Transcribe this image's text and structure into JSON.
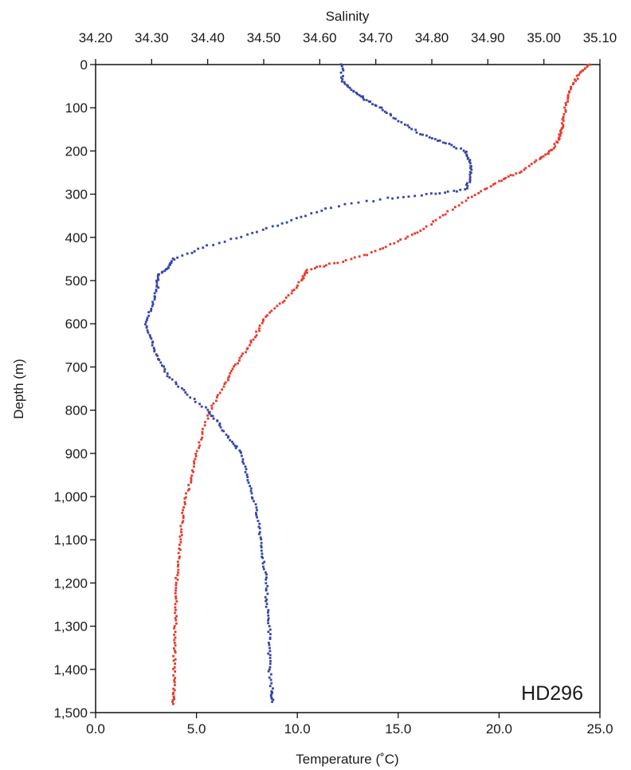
{
  "chart_data": {
    "type": "scatter",
    "stamp": "HD296",
    "ylabel": "Depth (m)",
    "xlabel_bottom": "Temperature (˚C)",
    "xlabel_top": "Salinity",
    "ylim": [
      0,
      1500
    ],
    "xlim_bottom": [
      0,
      25
    ],
    "xlim_top": [
      34.2,
      35.1
    ],
    "y_ticks": [
      0,
      100,
      200,
      300,
      400,
      500,
      600,
      700,
      800,
      900,
      1000,
      1100,
      1200,
      1300,
      1400,
      1500
    ],
    "y_tick_labels": [
      "0",
      "100",
      "200",
      "300",
      "400",
      "500",
      "600",
      "700",
      "800",
      "900",
      "1,000",
      "1,100",
      "1,200",
      "1,300",
      "1,400",
      "1,500"
    ],
    "bottom_ticks": [
      0,
      5,
      10,
      15,
      20,
      25
    ],
    "bottom_tick_labels": [
      "0.0",
      "5.0",
      "10.0",
      "15.0",
      "20.0",
      "25.0"
    ],
    "top_ticks": [
      34.2,
      34.3,
      34.4,
      34.5,
      34.6,
      34.7,
      34.8,
      34.9,
      35.0,
      35.1
    ],
    "top_tick_labels": [
      "34.20",
      "34.30",
      "34.40",
      "34.50",
      "34.60",
      "34.70",
      "34.80",
      "34.90",
      "35.00",
      "35.10"
    ],
    "series": [
      {
        "axis": "bottom",
        "color": "#e8392a",
        "points": [
          [
            24.5,
            0
          ],
          [
            24.0,
            20
          ],
          [
            23.6,
            50
          ],
          [
            23.4,
            80
          ],
          [
            23.2,
            120
          ],
          [
            23.1,
            150
          ],
          [
            23.0,
            170
          ],
          [
            22.6,
            200
          ],
          [
            22.0,
            220
          ],
          [
            21.0,
            250
          ],
          [
            20.0,
            270
          ],
          [
            18.8,
            300
          ],
          [
            17.5,
            340
          ],
          [
            16.3,
            380
          ],
          [
            15.0,
            410
          ],
          [
            13.5,
            440
          ],
          [
            11.8,
            460
          ],
          [
            10.5,
            475
          ],
          [
            10.2,
            500
          ],
          [
            9.5,
            540
          ],
          [
            8.5,
            580
          ],
          [
            8.0,
            620
          ],
          [
            7.5,
            660
          ],
          [
            6.9,
            700
          ],
          [
            6.4,
            740
          ],
          [
            5.8,
            790
          ],
          [
            5.3,
            850
          ],
          [
            5.0,
            900
          ],
          [
            4.8,
            950
          ],
          [
            4.5,
            1000
          ],
          [
            4.3,
            1050
          ],
          [
            4.2,
            1100
          ],
          [
            4.1,
            1150
          ],
          [
            4.0,
            1200
          ],
          [
            4.0,
            1250
          ],
          [
            3.95,
            1300
          ],
          [
            3.9,
            1350
          ],
          [
            3.9,
            1400
          ],
          [
            3.9,
            1450
          ],
          [
            3.85,
            1480
          ]
        ]
      },
      {
        "axis": "top",
        "color": "#3545a8",
        "points": [
          [
            34.64,
            0
          ],
          [
            34.64,
            40
          ],
          [
            34.66,
            60
          ],
          [
            34.68,
            80
          ],
          [
            34.71,
            100
          ],
          [
            34.74,
            130
          ],
          [
            34.78,
            160
          ],
          [
            34.82,
            180
          ],
          [
            34.86,
            200
          ],
          [
            34.87,
            230
          ],
          [
            34.87,
            260
          ],
          [
            34.86,
            290
          ],
          [
            34.8,
            300
          ],
          [
            34.72,
            310
          ],
          [
            34.62,
            330
          ],
          [
            34.55,
            360
          ],
          [
            34.48,
            390
          ],
          [
            34.4,
            420
          ],
          [
            34.34,
            450
          ],
          [
            34.33,
            470
          ],
          [
            34.31,
            490
          ],
          [
            34.31,
            520
          ],
          [
            34.3,
            560
          ],
          [
            34.29,
            600
          ],
          [
            34.3,
            640
          ],
          [
            34.31,
            680
          ],
          [
            34.33,
            720
          ],
          [
            34.36,
            760
          ],
          [
            34.4,
            800
          ],
          [
            34.42,
            830
          ],
          [
            34.44,
            870
          ],
          [
            34.46,
            900
          ],
          [
            34.47,
            950
          ],
          [
            34.48,
            1000
          ],
          [
            34.49,
            1050
          ],
          [
            34.495,
            1100
          ],
          [
            34.5,
            1150
          ],
          [
            34.505,
            1200
          ],
          [
            34.505,
            1250
          ],
          [
            34.51,
            1300
          ],
          [
            34.51,
            1350
          ],
          [
            34.51,
            1400
          ],
          [
            34.515,
            1450
          ],
          [
            34.515,
            1475
          ]
        ]
      }
    ]
  }
}
